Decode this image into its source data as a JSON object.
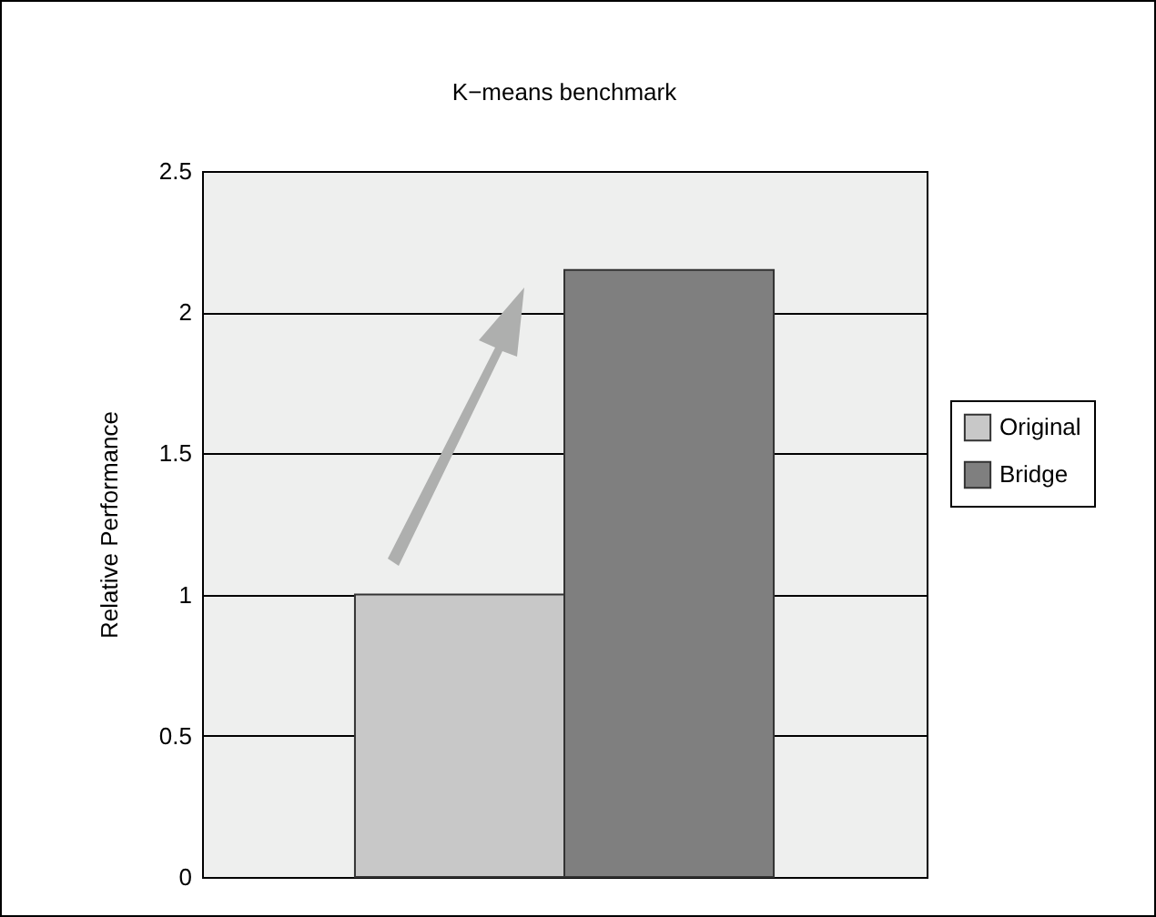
{
  "chart_data": {
    "type": "bar",
    "title": "K−means benchmark",
    "ylabel": "Relative Performance",
    "categories": [
      null
    ],
    "series": [
      {
        "name": "Original",
        "color": "#c8c8c8",
        "values": [
          1
        ]
      },
      {
        "name": "Bridge",
        "color": "#7f7f7f",
        "values": [
          2.15
        ]
      }
    ],
    "ylim": [
      0,
      2.5
    ],
    "yticks": [
      0,
      0.5,
      1,
      1.5,
      2,
      2.5
    ],
    "grid": "y",
    "legend": "right",
    "tick_labels": "y"
  }
}
